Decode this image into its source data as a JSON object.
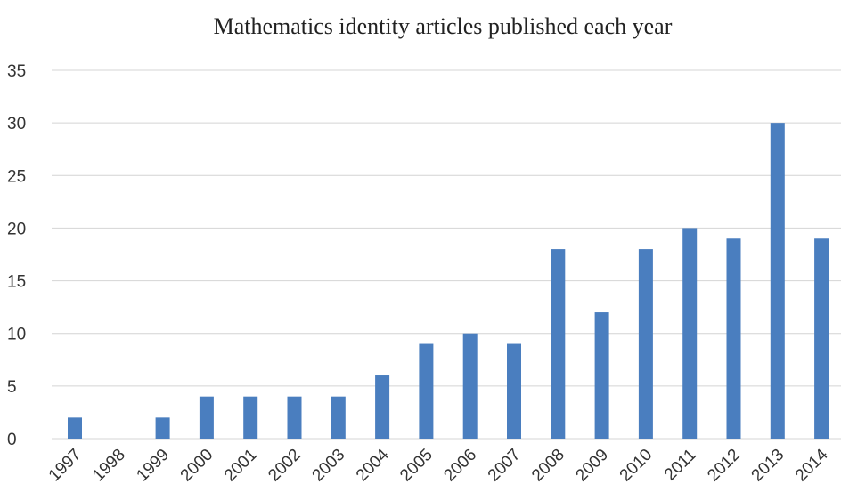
{
  "chart_data": {
    "type": "bar",
    "title": "Mathematics identity articles published each year",
    "xlabel": "",
    "ylabel": "",
    "categories": [
      "1997",
      "1998",
      "1999",
      "2000",
      "2001",
      "2002",
      "2003",
      "2004",
      "2005",
      "2006",
      "2007",
      "2008",
      "2009",
      "2010",
      "2011",
      "2012",
      "2013",
      "2014"
    ],
    "values": [
      2,
      0,
      2,
      4,
      4,
      4,
      4,
      6,
      9,
      10,
      9,
      18,
      12,
      18,
      20,
      19,
      30,
      19
    ],
    "ylim": [
      0,
      35
    ],
    "yticks": [
      0,
      5,
      10,
      15,
      20,
      25,
      30,
      35
    ],
    "grid": true,
    "legend": "none",
    "bar_color": "#4a7ebf"
  }
}
